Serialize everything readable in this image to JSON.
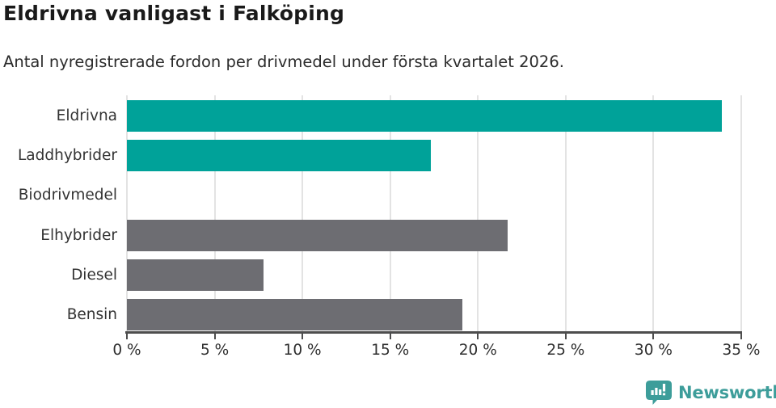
{
  "title": "Eldrivna vanligast i Falköping",
  "subtitle": "Antal nyregistrerade fordon per drivmedel under första kvartalet 2026.",
  "colors": {
    "bar_teal": "#00a299",
    "bar_gray": "#6d6d72",
    "axis": "#4d4d4d",
    "gridline": "#e3e3e3",
    "title_text": "#1a1a1a",
    "body_text": "#333333",
    "logo_teal": "#3d9d9a"
  },
  "chart_data": {
    "type": "bar",
    "orientation": "horizontal",
    "title": "Eldrivna vanligast i Falköping",
    "subtitle": "Antal nyregistrerade fordon per drivmedel under första kvartalet 2026.",
    "categories": [
      "Eldrivna",
      "Laddhybrider",
      "Biodrivmedel",
      "Elhybrider",
      "Diesel",
      "Bensin"
    ],
    "values": [
      33.9,
      17.3,
      0,
      21.7,
      7.8,
      19.1
    ],
    "unit": "%",
    "bar_colors": [
      "#00a299",
      "#00a299",
      "#6d6d72",
      "#6d6d72",
      "#6d6d72",
      "#6d6d72"
    ],
    "xlim": [
      0,
      35
    ],
    "x_ticks": [
      0,
      5,
      10,
      15,
      20,
      25,
      30,
      35
    ],
    "x_tick_labels": [
      "0 %",
      "5 %",
      "10 %",
      "15 %",
      "20 %",
      "25 %",
      "30 %",
      "35 %"
    ],
    "xlabel": "",
    "ylabel": "",
    "grid": true,
    "legend": false
  },
  "footer": {
    "brand": "Newsworthy",
    "logo_icon": "bar-chart-speech-bubble-icon"
  }
}
